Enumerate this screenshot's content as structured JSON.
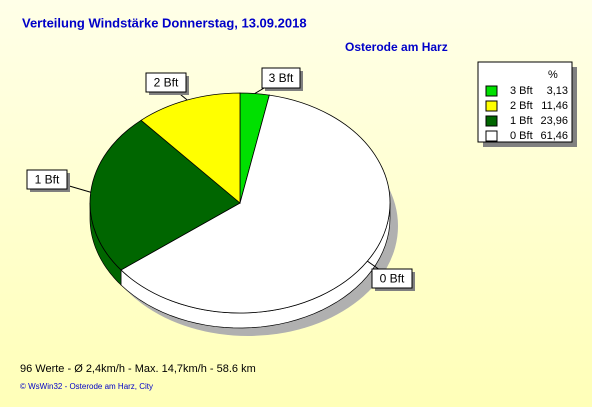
{
  "chart_data": {
    "type": "pie",
    "title": "Verteilung Windstärke  Donnerstag, 13.09.2018",
    "subtitle": "Osterode am Harz",
    "legend_header": "%",
    "series": [
      {
        "name": "3 Bft",
        "color": "#00e000",
        "values": [
          3.13
        ],
        "value_labels": [
          "3,13"
        ]
      },
      {
        "name": "2 Bft",
        "color": "#ffff00",
        "values": [
          11.46
        ],
        "value_labels": [
          "11,46"
        ]
      },
      {
        "name": "1 Bft",
        "color": "#006600",
        "values": [
          23.96
        ],
        "value_labels": [
          "23,96"
        ]
      },
      {
        "name": "0 Bft",
        "color": "#ffffff",
        "values": [
          61.46
        ],
        "value_labels": [
          "61,46"
        ]
      }
    ],
    "footer": "96 Werte   -   Ø 2,4km/h  -  Max. 14,7km/h   -    58.6 km",
    "credit": "© WsWin32  -  Osterode am Harz, City"
  }
}
